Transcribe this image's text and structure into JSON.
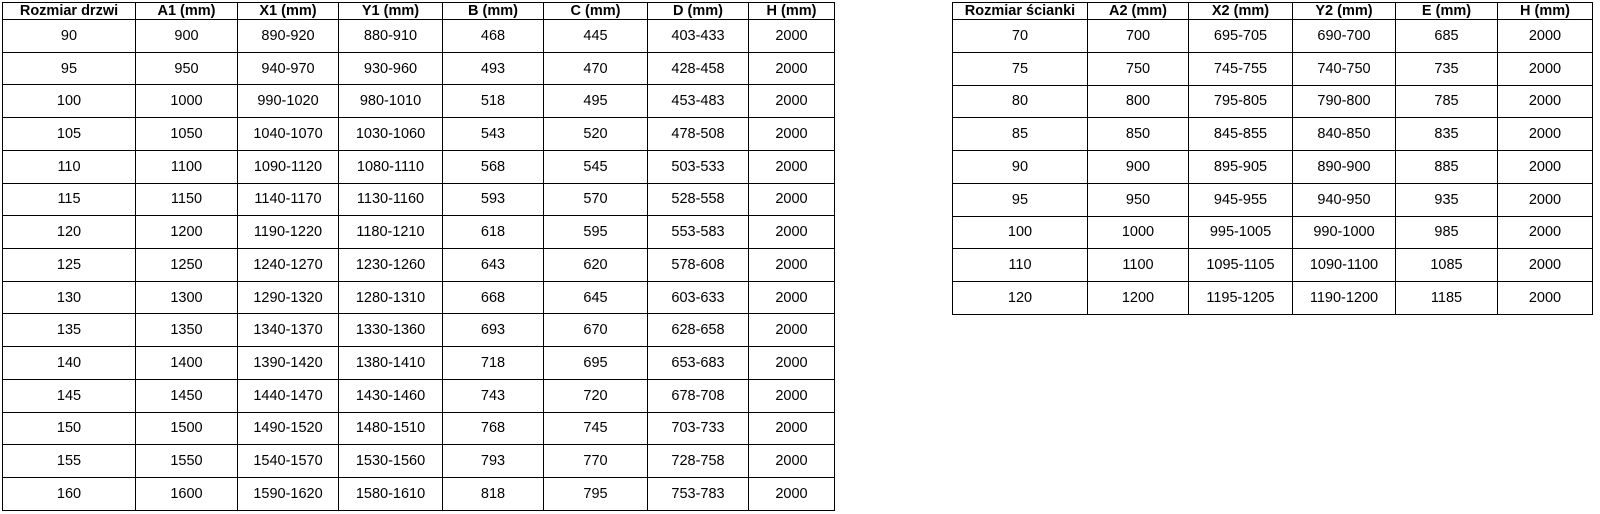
{
  "page": {
    "background_color": "#ffffff",
    "border_color": "#000000",
    "text_color": "#000000"
  },
  "tables": [
    {
      "id": "door-sizes",
      "headers": [
        "Rozmiar drzwi",
        "A1 (mm)",
        "X1 (mm)",
        "Y1 (mm)",
        "B (mm)",
        "C (mm)",
        "D (mm)",
        "H (mm)"
      ],
      "rows": [
        [
          "90",
          "900",
          "890-920",
          "880-910",
          "468",
          "445",
          "403-433",
          "2000"
        ],
        [
          "95",
          "950",
          "940-970",
          "930-960",
          "493",
          "470",
          "428-458",
          "2000"
        ],
        [
          "100",
          "1000",
          "990-1020",
          "980-1010",
          "518",
          "495",
          "453-483",
          "2000"
        ],
        [
          "105",
          "1050",
          "1040-1070",
          "1030-1060",
          "543",
          "520",
          "478-508",
          "2000"
        ],
        [
          "110",
          "1100",
          "1090-1120",
          "1080-1110",
          "568",
          "545",
          "503-533",
          "2000"
        ],
        [
          "115",
          "1150",
          "1140-1170",
          "1130-1160",
          "593",
          "570",
          "528-558",
          "2000"
        ],
        [
          "120",
          "1200",
          "1190-1220",
          "1180-1210",
          "618",
          "595",
          "553-583",
          "2000"
        ],
        [
          "125",
          "1250",
          "1240-1270",
          "1230-1260",
          "643",
          "620",
          "578-608",
          "2000"
        ],
        [
          "130",
          "1300",
          "1290-1320",
          "1280-1310",
          "668",
          "645",
          "603-633",
          "2000"
        ],
        [
          "135",
          "1350",
          "1340-1370",
          "1330-1360",
          "693",
          "670",
          "628-658",
          "2000"
        ],
        [
          "140",
          "1400",
          "1390-1420",
          "1380-1410",
          "718",
          "695",
          "653-683",
          "2000"
        ],
        [
          "145",
          "1450",
          "1440-1470",
          "1430-1460",
          "743",
          "720",
          "678-708",
          "2000"
        ],
        [
          "150",
          "1500",
          "1490-1520",
          "1480-1510",
          "768",
          "745",
          "703-733",
          "2000"
        ],
        [
          "155",
          "1550",
          "1540-1570",
          "1530-1560",
          "793",
          "770",
          "728-758",
          "2000"
        ],
        [
          "160",
          "1600",
          "1590-1620",
          "1580-1610",
          "818",
          "795",
          "753-783",
          "2000"
        ]
      ]
    },
    {
      "id": "wall-sizes",
      "headers": [
        "Rozmiar ścianki",
        "A2 (mm)",
        "X2 (mm)",
        "Y2 (mm)",
        "E (mm)",
        "H (mm)"
      ],
      "rows": [
        [
          "70",
          "700",
          "695-705",
          "690-700",
          "685",
          "2000"
        ],
        [
          "75",
          "750",
          "745-755",
          "740-750",
          "735",
          "2000"
        ],
        [
          "80",
          "800",
          "795-805",
          "790-800",
          "785",
          "2000"
        ],
        [
          "85",
          "850",
          "845-855",
          "840-850",
          "835",
          "2000"
        ],
        [
          "90",
          "900",
          "895-905",
          "890-900",
          "885",
          "2000"
        ],
        [
          "95",
          "950",
          "945-955",
          "940-950",
          "935",
          "2000"
        ],
        [
          "100",
          "1000",
          "995-1005",
          "990-1000",
          "985",
          "2000"
        ],
        [
          "110",
          "1100",
          "1095-1105",
          "1090-1100",
          "1085",
          "2000"
        ],
        [
          "120",
          "1200",
          "1195-1205",
          "1190-1200",
          "1185",
          "2000"
        ]
      ]
    }
  ]
}
